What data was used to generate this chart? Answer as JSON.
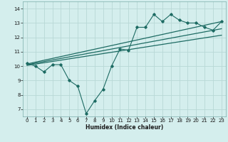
{
  "xlabel": "Humidex (Indice chaleur)",
  "bg_color": "#d4eeed",
  "grid_color": "#b8d8d6",
  "line_color": "#1d6b63",
  "xlim": [
    -0.5,
    23.5
  ],
  "ylim": [
    6.5,
    14.5
  ],
  "xticks": [
    0,
    1,
    2,
    3,
    4,
    5,
    6,
    7,
    8,
    9,
    10,
    11,
    12,
    13,
    14,
    15,
    16,
    17,
    18,
    19,
    20,
    21,
    22,
    23
  ],
  "yticks": [
    7,
    8,
    9,
    10,
    11,
    12,
    13,
    14
  ],
  "main_x": [
    0,
    1,
    2,
    3,
    4,
    5,
    6,
    7,
    8,
    9,
    10,
    11,
    12,
    13,
    14,
    15,
    16,
    17,
    18,
    19,
    20,
    21,
    22,
    23
  ],
  "main_y": [
    10.2,
    10.0,
    9.6,
    10.1,
    10.1,
    9.0,
    8.6,
    6.7,
    7.6,
    8.4,
    10.0,
    11.2,
    11.1,
    12.7,
    12.7,
    13.6,
    13.1,
    13.6,
    13.2,
    13.0,
    13.0,
    12.7,
    12.5,
    13.1
  ],
  "trend1_x": [
    0,
    23
  ],
  "trend1_y": [
    10.15,
    13.1
  ],
  "trend2_x": [
    0,
    23
  ],
  "trend2_y": [
    10.1,
    12.6
  ],
  "trend3_x": [
    0,
    23
  ],
  "trend3_y": [
    10.05,
    12.15
  ],
  "xlabel_fontsize": 5.5,
  "tick_fontsize": 5.0
}
